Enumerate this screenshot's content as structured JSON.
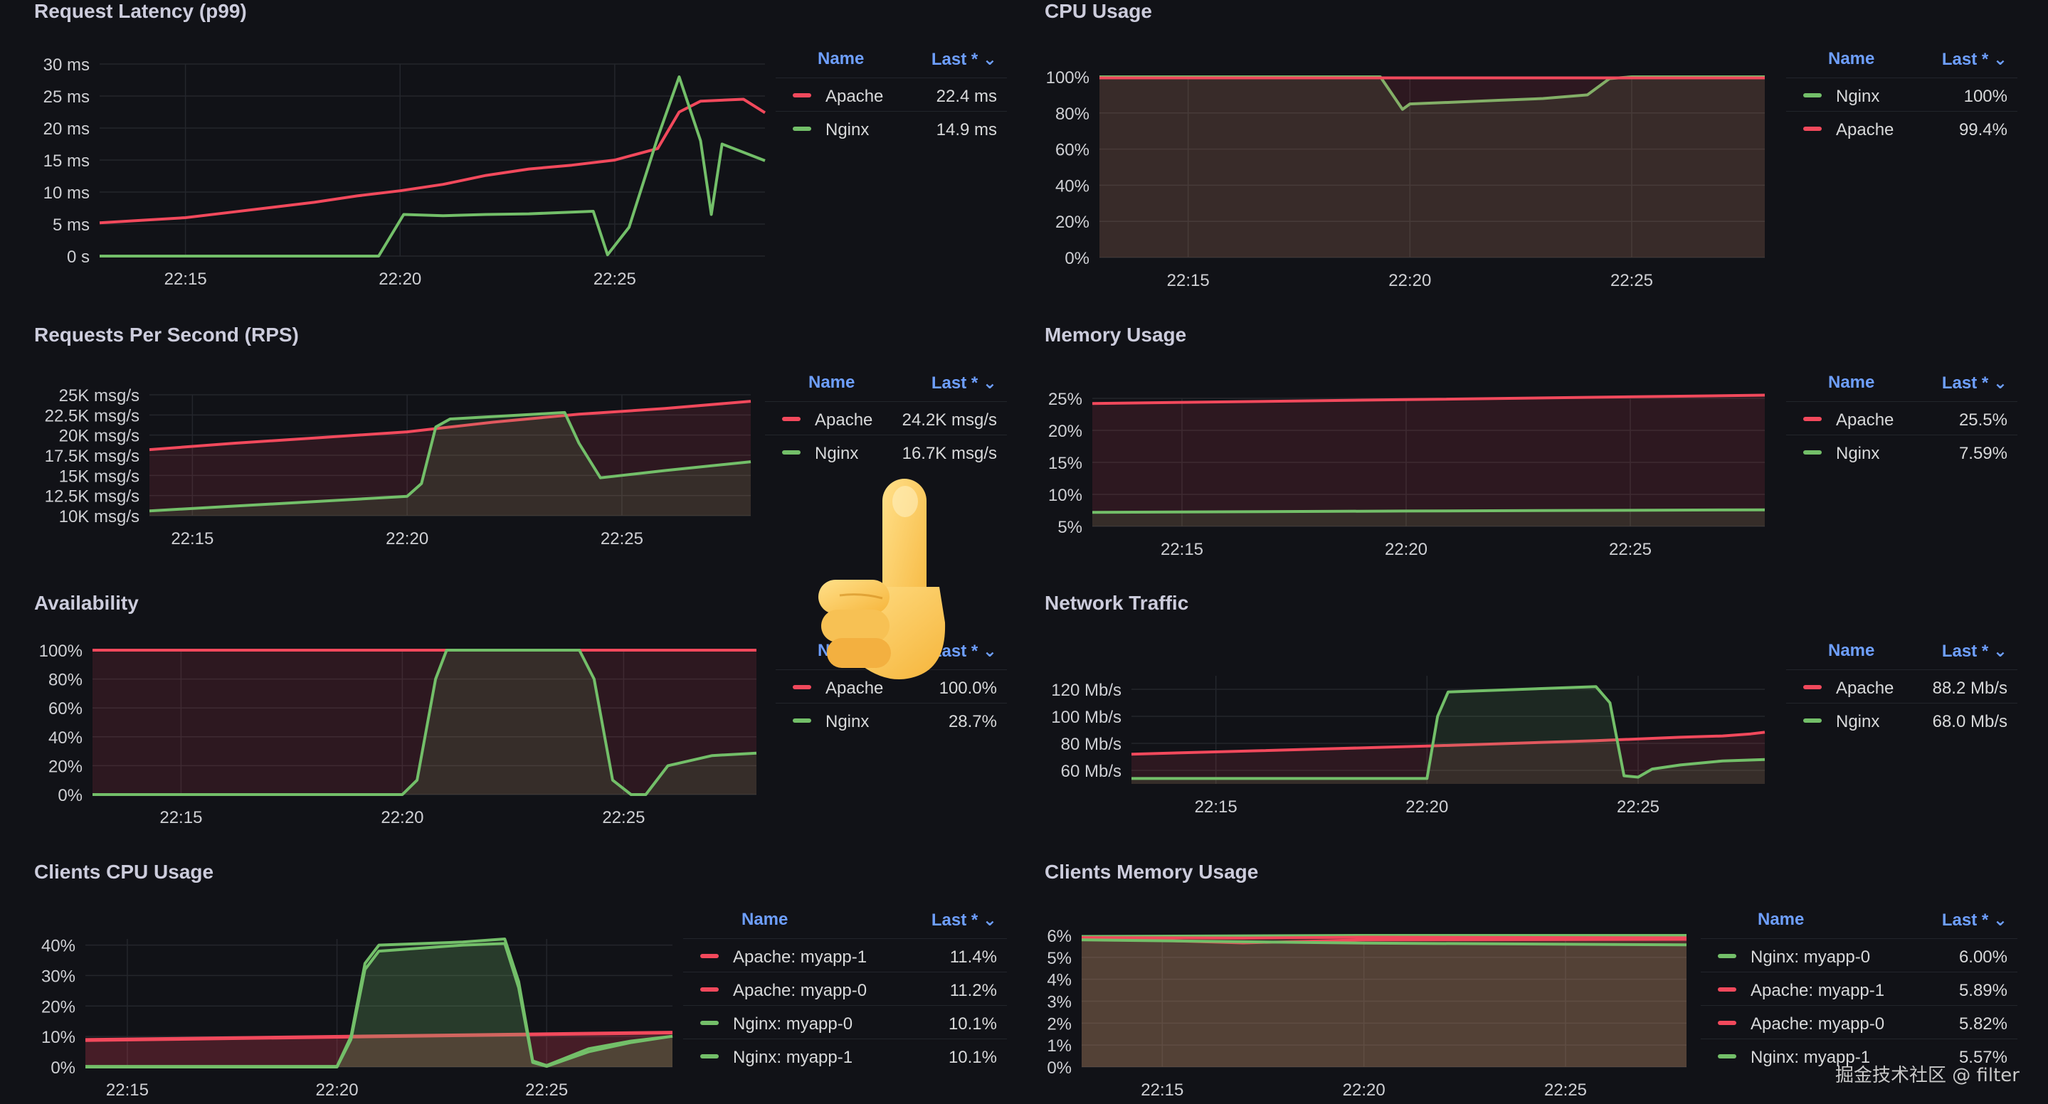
{
  "colors": {
    "apache": "#f2495c",
    "nginx": "#73bf69",
    "grid": "#24262c",
    "axis_text": "#cfd0d4"
  },
  "legend_headers": {
    "name": "Name",
    "last": "Last * ⌄"
  },
  "watermark": "掘金技术社区 @ filter",
  "pointer_icon": "pointing-up-hand-icon",
  "chart_data": [
    {
      "id": "latency",
      "type": "line",
      "title": "Request Latency (p99)",
      "xlim": [
        "22:13",
        "22:28:30"
      ],
      "xticks": [
        "22:15",
        "22:20",
        "22:25"
      ],
      "ylim": [
        0,
        30
      ],
      "yticks": [
        0,
        5,
        10,
        15,
        20,
        25,
        30
      ],
      "ytick_labels": [
        "0 s",
        "5 ms",
        "10 ms",
        "15 ms",
        "20 ms",
        "25 ms",
        "30 ms"
      ],
      "fill": false,
      "series": [
        {
          "name": "Apache",
          "color": "apache",
          "last": "22.4 ms",
          "x": [
            "22:13",
            "22:14",
            "22:15",
            "22:16",
            "22:17",
            "22:18",
            "22:19",
            "22:20",
            "22:21",
            "22:22",
            "22:23",
            "22:24",
            "22:25",
            "22:26",
            "22:26:30",
            "22:27",
            "22:28",
            "22:28:30"
          ],
          "y": [
            5.2,
            5.6,
            6.0,
            6.8,
            7.6,
            8.4,
            9.4,
            10.2,
            11.2,
            12.6,
            13.6,
            14.2,
            15.0,
            16.8,
            22.5,
            24.2,
            24.5,
            22.4
          ]
        },
        {
          "name": "Nginx",
          "color": "nginx",
          "last": "14.9 ms",
          "x": [
            "22:13",
            "22:19:30",
            "22:20:05",
            "22:21",
            "22:22",
            "22:23",
            "22:24:30",
            "22:24:50",
            "22:25:20",
            "22:25:40",
            "22:26",
            "22:26:30",
            "22:27",
            "22:27:15",
            "22:27:30",
            "22:28:30"
          ],
          "y": [
            0,
            0,
            6.5,
            6.3,
            6.5,
            6.6,
            7.0,
            0.2,
            4.5,
            11.5,
            18.5,
            28.0,
            18.0,
            6.5,
            17.5,
            14.9
          ]
        }
      ]
    },
    {
      "id": "cpu",
      "type": "area",
      "title": "CPU Usage",
      "xlim": [
        "22:13",
        "22:28"
      ],
      "xticks": [
        "22:15",
        "22:20",
        "22:25"
      ],
      "ylim": [
        0,
        100
      ],
      "yticks": [
        0,
        20,
        40,
        60,
        80,
        100
      ],
      "ytick_labels": [
        "0%",
        "20%",
        "40%",
        "60%",
        "80%",
        "100%"
      ],
      "fill": true,
      "series": [
        {
          "name": "Nginx",
          "color": "nginx",
          "last": "100%",
          "x": [
            "22:13",
            "22:19:20",
            "22:19:50",
            "22:20",
            "22:21",
            "22:22",
            "22:23",
            "22:24",
            "22:24:30",
            "22:25",
            "22:28"
          ],
          "y": [
            100,
            100,
            82,
            85,
            86,
            87,
            88,
            90,
            99,
            100,
            100
          ]
        },
        {
          "name": "Apache",
          "color": "apache",
          "last": "99.4%",
          "x": [
            "22:13",
            "22:28"
          ],
          "y": [
            99.4,
            99.4
          ]
        }
      ]
    },
    {
      "id": "rps",
      "type": "area",
      "title": "Requests Per Second (RPS)",
      "xlim": [
        "22:14",
        "22:28"
      ],
      "xticks": [
        "22:15",
        "22:20",
        "22:25"
      ],
      "ylim": [
        10,
        25
      ],
      "yticks": [
        10,
        12.5,
        15,
        17.5,
        20,
        22.5,
        25
      ],
      "ytick_labels": [
        "10K msg/s",
        "12.5K msg/s",
        "15K msg/s",
        "17.5K msg/s",
        "20K msg/s",
        "22.5K msg/s",
        "25K msg/s"
      ],
      "fill": true,
      "series": [
        {
          "name": "Apache",
          "color": "apache",
          "last": "24.2K msg/s",
          "x": [
            "22:14",
            "22:16",
            "22:18",
            "22:20",
            "22:22",
            "22:24",
            "22:26",
            "22:28"
          ],
          "y": [
            18.2,
            19.0,
            19.7,
            20.4,
            21.6,
            22.6,
            23.3,
            24.2
          ]
        },
        {
          "name": "Nginx",
          "color": "nginx",
          "last": "16.7K msg/s",
          "x": [
            "22:14",
            "22:16",
            "22:18",
            "22:20",
            "22:20:20",
            "22:20:40",
            "22:21",
            "22:23",
            "22:23:40",
            "22:24",
            "22:24:30",
            "22:26",
            "22:28"
          ],
          "y": [
            10.6,
            11.2,
            11.8,
            12.4,
            14.0,
            21.0,
            22.0,
            22.6,
            22.8,
            19.0,
            14.7,
            15.6,
            16.7
          ]
        }
      ]
    },
    {
      "id": "memory",
      "type": "area",
      "title": "Memory Usage",
      "xlim": [
        "22:13",
        "22:28"
      ],
      "xticks": [
        "22:15",
        "22:20",
        "22:25"
      ],
      "ylim": [
        5,
        25
      ],
      "yticks": [
        5,
        10,
        15,
        20,
        25
      ],
      "ytick_labels": [
        "5%",
        "10%",
        "15%",
        "20%",
        "25%"
      ],
      "fill": true,
      "series": [
        {
          "name": "Apache",
          "color": "apache",
          "last": "25.5%",
          "x": [
            "22:13",
            "22:20",
            "22:28"
          ],
          "y": [
            24.2,
            24.8,
            25.5
          ]
        },
        {
          "name": "Nginx",
          "color": "nginx",
          "last": "7.59%",
          "x": [
            "22:13",
            "22:20",
            "22:28"
          ],
          "y": [
            7.2,
            7.4,
            7.59
          ]
        }
      ]
    },
    {
      "id": "availability",
      "type": "area",
      "title": "Availability",
      "xlim": [
        "22:13",
        "22:28"
      ],
      "xticks": [
        "22:15",
        "22:20",
        "22:25"
      ],
      "ylim": [
        0,
        100
      ],
      "yticks": [
        0,
        20,
        40,
        60,
        80,
        100
      ],
      "ytick_labels": [
        "0%",
        "20%",
        "40%",
        "60%",
        "80%",
        "100%"
      ],
      "fill": true,
      "series": [
        {
          "name": "Apache",
          "color": "apache",
          "last": "100.0%",
          "x": [
            "22:13",
            "22:28"
          ],
          "y": [
            100,
            100
          ]
        },
        {
          "name": "Nginx",
          "color": "nginx",
          "last": "28.7%",
          "x": [
            "22:13",
            "22:20",
            "22:20:20",
            "22:20:45",
            "22:21",
            "22:24",
            "22:24:20",
            "22:24:45",
            "22:25:10",
            "22:25:30",
            "22:26",
            "22:27",
            "22:28"
          ],
          "y": [
            0,
            0,
            10,
            80,
            100,
            100,
            80,
            10,
            0,
            0,
            20,
            27,
            28.7
          ]
        }
      ]
    },
    {
      "id": "network",
      "type": "area",
      "title": "Network Traffic",
      "xlim": [
        "22:13",
        "22:28"
      ],
      "xticks": [
        "22:15",
        "22:20",
        "22:25"
      ],
      "ylim": [
        50,
        130
      ],
      "yticks": [
        60,
        80,
        100,
        120
      ],
      "ytick_labels": [
        "60 Mb/s",
        "80 Mb/s",
        "100 Mb/s",
        "120 Mb/s"
      ],
      "fill": true,
      "series": [
        {
          "name": "Apache",
          "color": "apache",
          "last": "88.2 Mb/s",
          "x": [
            "22:13",
            "22:16",
            "22:20",
            "22:24",
            "22:26",
            "22:27",
            "22:27:40",
            "22:28"
          ],
          "y": [
            72,
            74.5,
            78,
            82,
            84.5,
            85.5,
            87,
            88.2
          ]
        },
        {
          "name": "Nginx",
          "color": "nginx",
          "last": "68.0 Mb/s",
          "x": [
            "22:13",
            "22:20",
            "22:20:15",
            "22:20:30",
            "22:24",
            "22:24:20",
            "22:24:40",
            "22:25",
            "22:25:20",
            "22:26",
            "22:27",
            "22:28"
          ],
          "y": [
            54,
            54,
            100,
            118,
            122,
            110,
            56,
            55,
            61,
            64,
            67,
            68
          ]
        }
      ]
    },
    {
      "id": "clients_cpu",
      "type": "area",
      "title": "Clients CPU Usage",
      "xlim": [
        "22:14",
        "22:28"
      ],
      "xticks": [
        "22:15",
        "22:20",
        "22:25"
      ],
      "ylim": [
        0,
        42
      ],
      "yticks": [
        0,
        10,
        20,
        30,
        40
      ],
      "ytick_labels": [
        "0%",
        "10%",
        "20%",
        "30%",
        "40%"
      ],
      "fill": true,
      "series": [
        {
          "name": "Apache: myapp-1",
          "color": "apache",
          "last": "11.4%",
          "x": [
            "22:14",
            "22:28"
          ],
          "y": [
            9.0,
            11.4
          ]
        },
        {
          "name": "Apache: myapp-0",
          "color": "apache",
          "last": "11.2%",
          "x": [
            "22:14",
            "22:28"
          ],
          "y": [
            8.7,
            11.2
          ]
        },
        {
          "name": "Nginx: myapp-0",
          "color": "nginx",
          "last": "10.1%",
          "x": [
            "22:14",
            "22:20",
            "22:20:20",
            "22:20:40",
            "22:21",
            "22:23",
            "22:24",
            "22:24:20",
            "22:24:40",
            "22:25",
            "22:26",
            "22:27",
            "22:28"
          ],
          "y": [
            0.2,
            0.2,
            10,
            34,
            40,
            41,
            42,
            28,
            2,
            0.5,
            6,
            8.5,
            10.1
          ]
        },
        {
          "name": "Nginx: myapp-1",
          "color": "nginx",
          "last": "10.1%",
          "x": [
            "22:14",
            "22:20",
            "22:20:20",
            "22:20:40",
            "22:21",
            "22:23",
            "22:24",
            "22:24:20",
            "22:24:40",
            "22:25",
            "22:26",
            "22:27",
            "22:28"
          ],
          "y": [
            0.0,
            0.0,
            9,
            32,
            38,
            40,
            40.5,
            26,
            1.5,
            0.2,
            5,
            8,
            10.1
          ]
        }
      ]
    },
    {
      "id": "clients_memory",
      "type": "area",
      "title": "Clients Memory Usage",
      "xlim": [
        "22:13",
        "22:28"
      ],
      "xticks": [
        "22:15",
        "22:20",
        "22:25"
      ],
      "ylim": [
        0,
        6
      ],
      "yticks": [
        0,
        1,
        2,
        3,
        4,
        5,
        6
      ],
      "ytick_labels": [
        "0%",
        "1%",
        "2%",
        "3%",
        "4%",
        "5%",
        "6%"
      ],
      "fill": true,
      "series": [
        {
          "name": "Nginx: myapp-0",
          "color": "nginx",
          "last": "6.00%",
          "x": [
            "22:13",
            "22:20",
            "22:28"
          ],
          "y": [
            5.95,
            6.0,
            6.0
          ]
        },
        {
          "name": "Apache: myapp-1",
          "color": "apache",
          "last": "5.89%",
          "x": [
            "22:13",
            "22:17",
            "22:20",
            "22:28"
          ],
          "y": [
            5.9,
            5.88,
            5.92,
            5.89
          ]
        },
        {
          "name": "Apache: myapp-0",
          "color": "apache",
          "last": "5.82%",
          "x": [
            "22:13",
            "22:17",
            "22:20",
            "22:28"
          ],
          "y": [
            5.88,
            5.66,
            5.8,
            5.82
          ]
        },
        {
          "name": "Nginx: myapp-1",
          "color": "nginx",
          "last": "5.57%",
          "x": [
            "22:13",
            "22:20",
            "22:28"
          ],
          "y": [
            5.8,
            5.65,
            5.57
          ]
        }
      ]
    }
  ]
}
